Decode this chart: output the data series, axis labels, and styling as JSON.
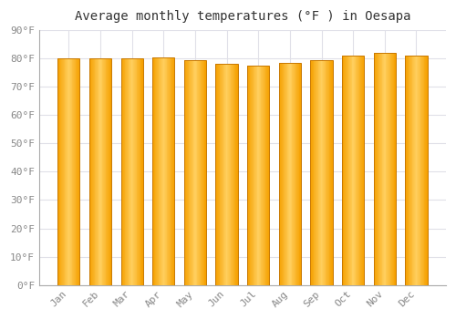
{
  "months": [
    "Jan",
    "Feb",
    "Mar",
    "Apr",
    "May",
    "Jun",
    "Jul",
    "Aug",
    "Sep",
    "Oct",
    "Nov",
    "Dec"
  ],
  "values": [
    80.0,
    80.0,
    80.0,
    80.5,
    79.5,
    78.0,
    77.5,
    78.5,
    79.5,
    81.0,
    82.0,
    81.0
  ],
  "bar_color_center": "#FFD060",
  "bar_color_edge": "#F5A000",
  "title": "Average monthly temperatures (°F ) in Oesapa",
  "ylim": [
    0,
    90
  ],
  "yticks": [
    0,
    10,
    20,
    30,
    40,
    50,
    60,
    70,
    80,
    90
  ],
  "ytick_labels": [
    "0°F",
    "10°F",
    "20°F",
    "30°F",
    "40°F",
    "50°F",
    "60°F",
    "70°F",
    "80°F",
    "90°F"
  ],
  "background_color": "#FFFFFF",
  "grid_color": "#E0E0E8",
  "title_fontsize": 10,
  "tick_fontsize": 8,
  "bar_width": 0.7
}
